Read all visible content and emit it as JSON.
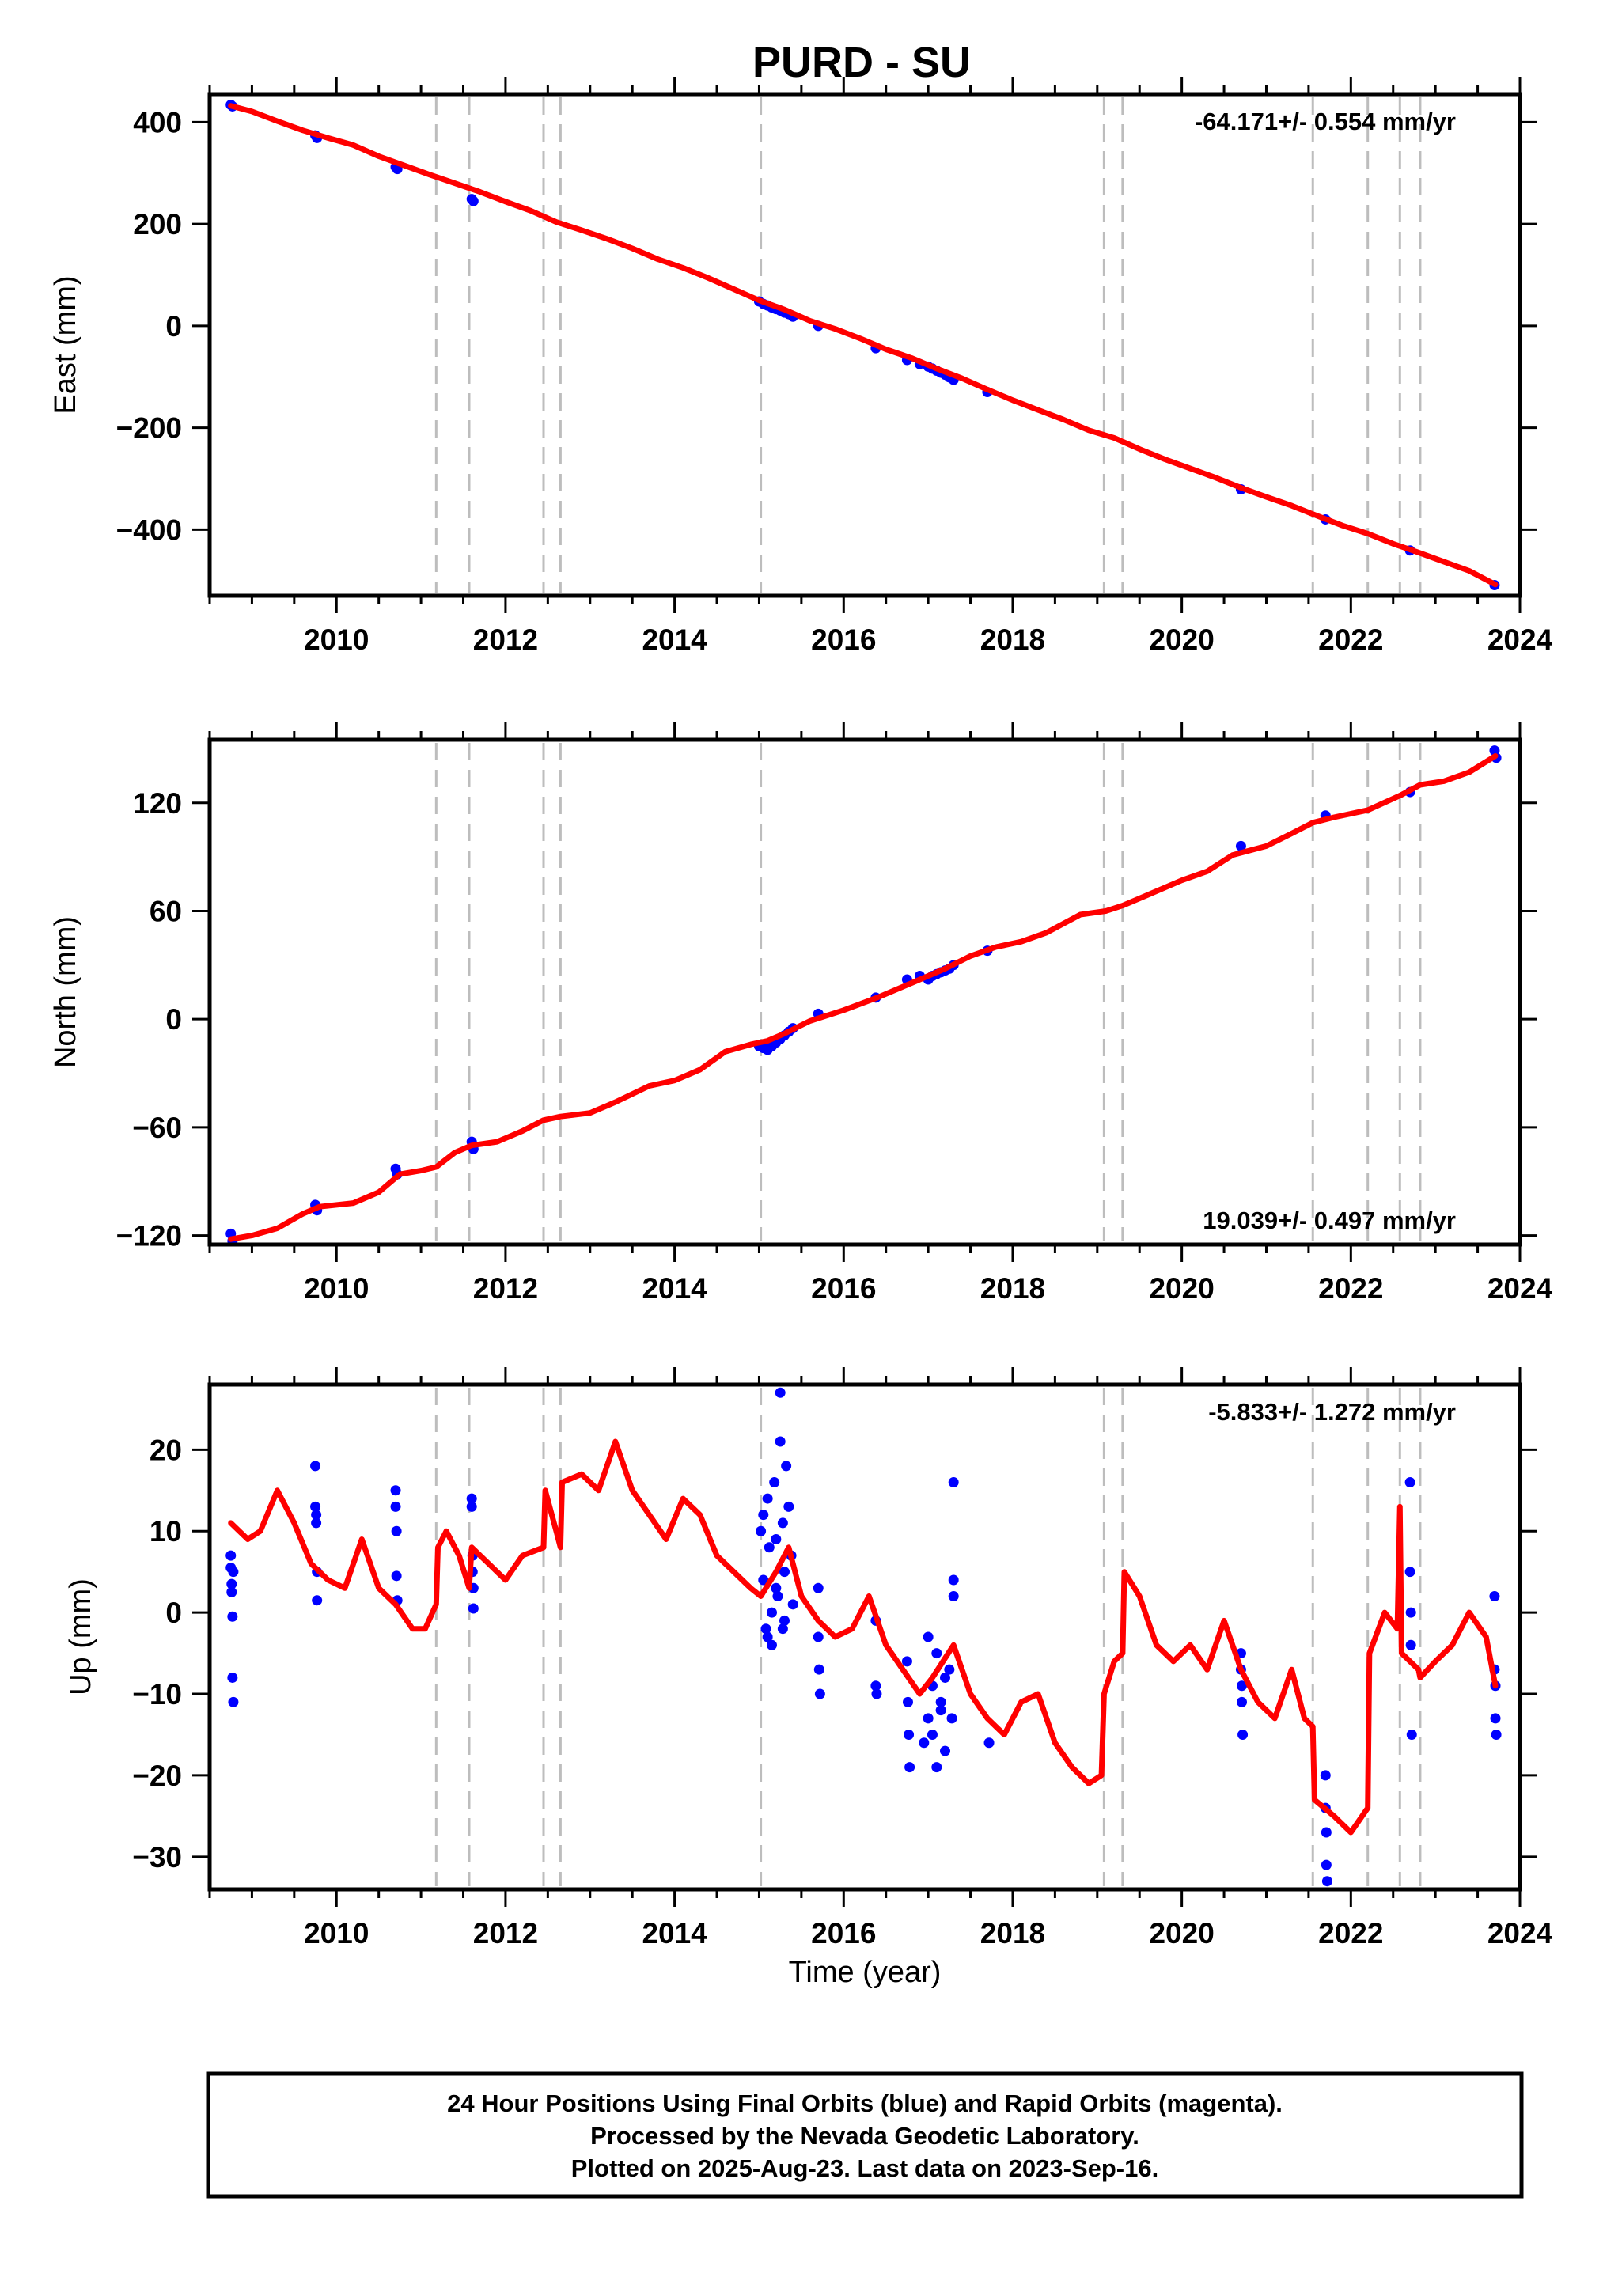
{
  "title": "PURD - SU",
  "colors": {
    "model_line": "#ff0000",
    "data_points": "#0000ff",
    "reference_lines": "#bdbdbd",
    "frame": "#000000"
  },
  "event_lines_years": [
    2011.18,
    2011.57,
    2012.45,
    2012.65,
    2015.02,
    2019.08,
    2019.3,
    2021.55,
    2022.2,
    2022.58,
    2022.82
  ],
  "x_axis": {
    "min": 2008.5,
    "max": 2024.0,
    "ticks": [
      "2010",
      "2012",
      "2014",
      "2016",
      "2018",
      "2020",
      "2022",
      "2024"
    ],
    "xlabel": "Time (year)"
  },
  "chart_data": [
    {
      "type": "scatter",
      "title": "",
      "ylabel": "East (mm)",
      "ylim": [
        -530,
        455
      ],
      "yticks": [
        400,
        200,
        0,
        -200,
        -400
      ],
      "ytick_labels": [
        "400",
        "200",
        "0",
        "−200",
        "−400"
      ],
      "rate_text": "-64.171+/- 0.554 mm/yr",
      "rate_position": "top-right",
      "series": [
        {
          "name": "",
          "role": "model",
          "x": [
            2008.75,
            2009.0,
            2009.3,
            2009.6,
            2009.9,
            2010.2,
            2010.5,
            2010.8,
            2011.1,
            2011.4,
            2011.7,
            2012.0,
            2012.3,
            2012.6,
            2012.9,
            2013.2,
            2013.5,
            2013.8,
            2014.1,
            2014.4,
            2014.7,
            2015.0,
            2015.3,
            2015.6,
            2015.9,
            2016.2,
            2016.5,
            2016.8,
            2017.1,
            2017.4,
            2017.7,
            2018.0,
            2018.3,
            2018.6,
            2018.9,
            2019.2,
            2019.5,
            2019.8,
            2020.1,
            2020.4,
            2020.7,
            2021.0,
            2021.3,
            2021.6,
            2021.9,
            2022.2,
            2022.5,
            2022.8,
            2023.1,
            2023.4,
            2023.71
          ],
          "y": [
            432,
            421,
            402,
            384,
            369,
            355,
            333,
            315,
            297,
            280,
            263,
            244,
            226,
            204,
            188,
            171,
            152,
            131,
            114,
            94,
            72,
            50,
            32,
            10,
            -6,
            -25,
            -46,
            -63,
            -84,
            -103,
            -125,
            -146,
            -165,
            -184,
            -205,
            -220,
            -242,
            -262,
            -280,
            -298,
            -318,
            -336,
            -353,
            -373,
            -392,
            -408,
            -428,
            -445,
            -463,
            -481,
            -508
          ]
        },
        {
          "name": "",
          "role": "data",
          "x": [
            2008.75,
            2008.77,
            2009.75,
            2009.77,
            2010.7,
            2010.72,
            2011.6,
            2011.62,
            2015.0,
            2015.05,
            2015.1,
            2015.15,
            2015.2,
            2015.25,
            2015.3,
            2015.35,
            2015.4,
            2015.7,
            2016.38,
            2016.75,
            2016.9,
            2017.0,
            2017.05,
            2017.1,
            2017.15,
            2017.2,
            2017.25,
            2017.3,
            2017.7,
            2020.7,
            2021.7,
            2022.7,
            2023.7
          ],
          "y": [
            434,
            431,
            374,
            369,
            312,
            308,
            249,
            245,
            48,
            43,
            40,
            36,
            33,
            30,
            26,
            23,
            18,
            0,
            -44,
            -67,
            -75,
            -80,
            -84,
            -88,
            -92,
            -96,
            -101,
            -106,
            -130,
            -321,
            -380,
            -441,
            -509
          ]
        }
      ]
    },
    {
      "type": "scatter",
      "title": "",
      "ylabel": "North (mm)",
      "ylim": [
        -125,
        155
      ],
      "yticks": [
        120,
        60,
        0,
        -60,
        -120
      ],
      "ytick_labels": [
        "120",
        "60",
        "0",
        "−60",
        "−120"
      ],
      "rate_text": "19.039+/- 0.497 mm/yr",
      "rate_position": "bottom-right",
      "series": [
        {
          "name": "",
          "role": "model",
          "x": [
            2008.75,
            2009.0,
            2009.3,
            2009.6,
            2009.8,
            2010.2,
            2010.5,
            2010.75,
            2011.0,
            2011.18,
            2011.4,
            2011.6,
            2011.9,
            2012.2,
            2012.45,
            2012.65,
            2013.0,
            2013.3,
            2013.7,
            2014.0,
            2014.3,
            2014.6,
            2014.9,
            2015.1,
            2015.3,
            2015.6,
            2016.0,
            2016.4,
            2016.8,
            2017.2,
            2017.5,
            2017.8,
            2018.1,
            2018.4,
            2018.8,
            2019.1,
            2019.3,
            2019.6,
            2020.0,
            2020.3,
            2020.6,
            2021.0,
            2021.3,
            2021.55,
            2021.8,
            2022.2,
            2022.58,
            2022.82,
            2023.1,
            2023.4,
            2023.71
          ],
          "y": [
            -122,
            -120,
            -116,
            -108,
            -104,
            -102,
            -96,
            -86,
            -84,
            -82,
            -74,
            -70,
            -68,
            -62,
            -56,
            -54,
            -52,
            -46,
            -37,
            -34,
            -28,
            -18,
            -14,
            -12,
            -8,
            -1,
            5,
            12,
            20,
            28,
            35,
            40,
            43,
            48,
            58,
            60,
            63,
            69,
            77,
            82,
            91,
            96,
            103,
            109,
            112,
            116,
            124,
            130,
            132,
            137,
            146
          ]
        },
        {
          "name": "",
          "role": "data",
          "x": [
            2008.75,
            2008.77,
            2009.75,
            2009.77,
            2010.7,
            2010.72,
            2011.6,
            2011.62,
            2015.0,
            2015.05,
            2015.1,
            2015.15,
            2015.2,
            2015.25,
            2015.3,
            2015.35,
            2015.4,
            2015.7,
            2016.38,
            2016.75,
            2016.9,
            2017.0,
            2017.05,
            2017.1,
            2017.15,
            2017.2,
            2017.25,
            2017.3,
            2017.7,
            2020.7,
            2021.7,
            2022.7,
            2023.7,
            2023.72
          ],
          "y": [
            -119,
            -123,
            -103,
            -106,
            -83,
            -86,
            -68,
            -72,
            -15,
            -16,
            -17,
            -15,
            -13,
            -11,
            -9,
            -7,
            -5,
            3,
            12,
            22,
            24,
            22,
            24,
            25,
            26,
            27,
            28,
            30,
            38,
            96,
            113,
            126,
            149,
            145
          ]
        }
      ]
    },
    {
      "type": "scatter",
      "title": "",
      "ylabel": "Up (mm)",
      "ylim": [
        -34,
        28
      ],
      "yticks": [
        20,
        10,
        0,
        -10,
        -20,
        -30
      ],
      "ytick_labels": [
        "20",
        "10",
        "0",
        "−10",
        "−20",
        "−30"
      ],
      "rate_text": "-5.833+/- 1.272 mm/yr",
      "rate_position": "top-right",
      "series": [
        {
          "name": "",
          "role": "model",
          "x": [
            2008.75,
            2008.95,
            2009.1,
            2009.3,
            2009.5,
            2009.7,
            2009.9,
            2010.1,
            2010.3,
            2010.5,
            2010.7,
            2010.9,
            2011.05,
            2011.18,
            2011.2,
            2011.3,
            2011.45,
            2011.57,
            2011.6,
            2011.8,
            2012.0,
            2012.2,
            2012.45,
            2012.47,
            2012.6,
            2012.65,
            2012.67,
            2012.9,
            2013.1,
            2013.3,
            2013.5,
            2013.7,
            2013.9,
            2014.1,
            2014.3,
            2014.5,
            2014.7,
            2014.9,
            2015.02,
            2015.2,
            2015.35,
            2015.5,
            2015.7,
            2015.9,
            2016.1,
            2016.3,
            2016.5,
            2016.7,
            2016.9,
            2017.05,
            2017.3,
            2017.5,
            2017.7,
            2017.9,
            2018.1,
            2018.3,
            2018.5,
            2018.7,
            2018.9,
            2019.05,
            2019.08,
            2019.2,
            2019.3,
            2019.32,
            2019.5,
            2019.7,
            2019.9,
            2020.1,
            2020.3,
            2020.5,
            2020.7,
            2020.9,
            2021.1,
            2021.3,
            2021.45,
            2021.55,
            2021.57,
            2021.8,
            2022.0,
            2022.2,
            2022.22,
            2022.4,
            2022.55,
            2022.58,
            2022.6,
            2022.8,
            2022.82,
            2023.0,
            2023.2,
            2023.4,
            2023.6,
            2023.71
          ],
          "y": [
            11,
            9,
            10,
            15,
            11,
            6,
            4,
            3,
            9,
            3,
            1,
            -2,
            -2,
            1,
            8,
            10,
            7,
            3,
            8,
            6,
            4,
            7,
            8,
            15,
            10,
            8,
            16,
            17,
            15,
            21,
            15,
            12,
            9,
            14,
            12,
            7,
            5,
            3,
            2,
            5,
            8,
            2,
            -1,
            -3,
            -2,
            2,
            -4,
            -7,
            -10,
            -8,
            -4,
            -10,
            -13,
            -15,
            -11,
            -10,
            -16,
            -19,
            -21,
            -20,
            -10,
            -6,
            -5,
            5,
            2,
            -4,
            -6,
            -4,
            -7,
            -1,
            -7,
            -11,
            -13,
            -7,
            -13,
            -14,
            -23,
            -25,
            -27,
            -24,
            -5,
            0,
            -2,
            13,
            -5,
            -7,
            -8,
            -6,
            -4,
            0,
            -3,
            -9
          ]
        },
        {
          "name": "",
          "role": "data",
          "x": [
            2008.75,
            2008.75,
            2008.76,
            2008.76,
            2008.77,
            2008.77,
            2008.78,
            2008.78,
            2009.75,
            2009.75,
            2009.76,
            2009.76,
            2009.77,
            2009.77,
            2010.7,
            2010.7,
            2010.71,
            2010.71,
            2010.72,
            2011.6,
            2011.6,
            2011.61,
            2011.61,
            2011.62,
            2011.62,
            2015.02,
            2015.05,
            2015.08,
            2015.1,
            2015.12,
            2015.15,
            2015.18,
            2015.2,
            2015.22,
            2015.25,
            2015.28,
            2015.3,
            2015.32,
            2015.35,
            2015.38,
            2015.3,
            2015.25,
            2015.2,
            2015.1,
            2015.05,
            2015.4,
            2015.28,
            2015.15,
            2015.7,
            2015.7,
            2015.71,
            2015.72,
            2016.38,
            2016.38,
            2016.39,
            2016.75,
            2016.76,
            2016.77,
            2016.78,
            2016.95,
            2017.0,
            2017.05,
            2017.1,
            2017.15,
            2017.2,
            2017.25,
            2017.3,
            2017.0,
            2017.05,
            2017.1,
            2017.15,
            2017.2,
            2017.28,
            2017.3,
            2017.3,
            2017.72,
            2020.7,
            2020.7,
            2020.71,
            2020.71,
            2020.72,
            2021.7,
            2021.7,
            2021.71,
            2021.71,
            2021.72,
            2022.7,
            2022.7,
            2022.71,
            2022.71,
            2022.72,
            2023.7,
            2023.7,
            2023.71,
            2023.71,
            2023.72
          ],
          "y": [
            7,
            5.5,
            3.5,
            2.5,
            -0.5,
            -8,
            -11,
            5,
            18,
            13,
            12,
            11,
            5,
            1.5,
            15,
            13,
            10,
            4.5,
            1.5,
            14,
            13,
            7,
            5,
            3,
            0.5,
            10,
            4,
            -2,
            14,
            8,
            0,
            16,
            9,
            2,
            21,
            11,
            5,
            18,
            13,
            7,
            -1,
            27,
            3,
            -3,
            12,
            1,
            -2,
            -4,
            3,
            -3,
            -7,
            -10,
            -1,
            -9,
            -10,
            -6,
            -11,
            -15,
            -19,
            -16,
            -13,
            -9,
            -5,
            -12,
            -17,
            -7,
            2,
            -3,
            -15,
            -19,
            -11,
            -8,
            -13,
            16,
            4,
            -16,
            -5,
            -7,
            -9,
            -11,
            -15,
            -20,
            -24,
            -27,
            -31,
            -33,
            16,
            5,
            0,
            -4,
            -15,
            2,
            -7,
            -9,
            -13,
            -15
          ]
        }
      ]
    }
  ],
  "footer": {
    "line1": "24 Hour Positions Using Final Orbits (blue) and Rapid Orbits (magenta).",
    "line2": "Processed by the Nevada Geodetic Laboratory.",
    "line3": "Plotted on 2025-Aug-23. Last data on 2023-Sep-16."
  }
}
